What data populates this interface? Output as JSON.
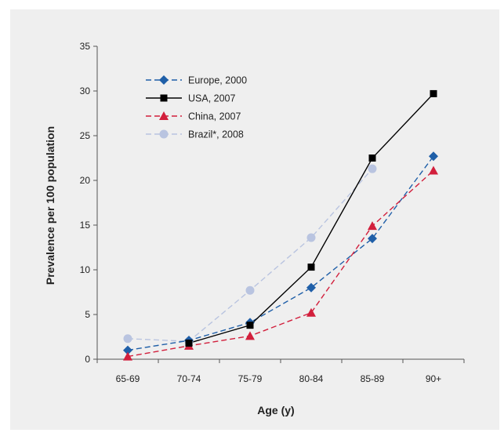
{
  "chart_data": {
    "type": "line",
    "xlabel": "Age (y)",
    "ylabel": "Prevalence per 100 population",
    "categories": [
      "65-69",
      "70-74",
      "75-79",
      "80-84",
      "85-89",
      "90+"
    ],
    "ylim": [
      0,
      35
    ],
    "yticks": [
      0,
      5,
      10,
      15,
      20,
      25,
      30,
      35
    ],
    "grid": false,
    "legend_position": "top-left",
    "series": [
      {
        "name": "Europe, 2000",
        "values": [
          1.0,
          2.1,
          4.1,
          8.0,
          13.5,
          22.7
        ],
        "color": "#1f5fa8",
        "marker": "diamond",
        "dash": "dashed"
      },
      {
        "name": "USA, 2007",
        "values": [
          null,
          1.8,
          3.8,
          10.3,
          22.5,
          29.7
        ],
        "color": "#000000",
        "marker": "square",
        "dash": "solid"
      },
      {
        "name": "China, 2007",
        "values": [
          0.3,
          1.5,
          2.6,
          5.2,
          14.9,
          21.1
        ],
        "color": "#d21f3c",
        "marker": "triangle",
        "dash": "dashed"
      },
      {
        "name": "Brazil*, 2008",
        "values": [
          2.3,
          2.0,
          7.7,
          13.6,
          21.3,
          null
        ],
        "color": "#b9c4e0",
        "marker": "circle",
        "dash": "dashed"
      }
    ]
  }
}
